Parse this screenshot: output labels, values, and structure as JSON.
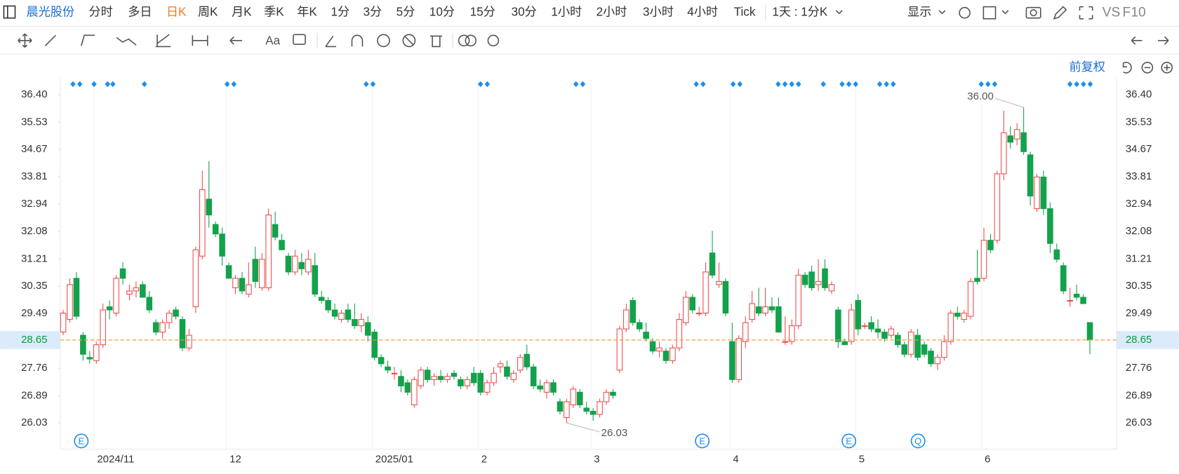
{
  "symbol": "晨光股份",
  "periods": [
    "分时",
    "多日",
    "日K",
    "周K",
    "月K",
    "季K",
    "年K",
    "1分",
    "3分",
    "5分",
    "10分",
    "15分",
    "30分",
    "1小时",
    "2小时",
    "3小时",
    "4小时",
    "Tick"
  ],
  "range_picker": "1天 : 1分K",
  "display": "显示",
  "compare": "VS",
  "f10": "F10",
  "font_tool": "Aa",
  "adjust": "前复权",
  "chart_data": {
    "type": "candlestick",
    "up_color": "#ef4b4d",
    "down_color": "#12a24b",
    "last_price_color": "#f39a3a",
    "xgrid": true,
    "ylim": [
      25.2,
      36.9
    ],
    "yticks": [
      {
        "value": 36.4,
        "label": "36.40"
      },
      35.53,
      34.67,
      33.81,
      32.94,
      32.08,
      31.21,
      30.35,
      29.49,
      27.76,
      26.89,
      26.03
    ],
    "last_price": 28.65,
    "annotations": [
      {
        "value": 36.0,
        "label": "36.00"
      },
      26.03
    ],
    "events": [
      "E",
      "E",
      "E",
      "Q"
    ],
    "categories": [
      null,
      null,
      null,
      null,
      null,
      "2024/11",
      null,
      null,
      null,
      null,
      null,
      null,
      null,
      null,
      null,
      null,
      null,
      null,
      null,
      null,
      null,
      null,
      null,
      null,
      null,
      "12",
      null,
      null,
      null,
      null,
      null,
      null,
      null,
      null,
      null,
      null,
      null,
      null,
      null,
      null,
      null,
      null,
      null,
      null,
      null,
      null,
      null,
      "2025/01",
      null,
      null,
      null,
      null,
      null,
      null,
      null,
      null,
      null,
      null,
      null,
      null,
      null,
      null,
      null,
      "2",
      null,
      null,
      null,
      null,
      null,
      null,
      null,
      null,
      null,
      null,
      null,
      null,
      null,
      null,
      null,
      null,
      "3",
      null,
      null,
      null,
      null,
      null,
      null,
      null,
      null,
      null,
      null,
      null,
      null,
      null,
      null,
      null,
      null,
      null,
      null,
      null,
      null,
      "4",
      null,
      null,
      null,
      null,
      null,
      null,
      null,
      null,
      null,
      null,
      null,
      null,
      null,
      null,
      null,
      null,
      null,
      null,
      "5",
      null,
      null,
      null,
      null,
      null,
      null,
      null,
      null,
      null,
      null,
      null,
      null,
      null,
      null,
      null,
      null,
      null,
      null,
      "6",
      null,
      null,
      null,
      null,
      null,
      null,
      null,
      null,
      null,
      null,
      null,
      null,
      null,
      null,
      null,
      null
    ],
    "ohlc": [
      [
        28.9,
        29.6,
        28.8,
        29.5
      ],
      [
        29.3,
        30.6,
        29.2,
        30.4
      ],
      [
        30.6,
        30.8,
        29.3,
        29.4
      ],
      [
        28.8,
        28.9,
        28.0,
        28.2
      ],
      [
        28.1,
        28.3,
        27.9,
        28.05
      ],
      [
        28.0,
        28.6,
        27.9,
        28.5
      ],
      [
        28.5,
        29.8,
        28.4,
        29.6
      ],
      [
        29.7,
        29.9,
        29.3,
        29.6
      ],
      [
        29.5,
        30.7,
        29.4,
        30.6
      ],
      [
        30.9,
        31.1,
        30.4,
        30.6
      ],
      [
        30.1,
        30.4,
        29.9,
        30.2
      ],
      [
        30.2,
        30.5,
        30.0,
        30.3
      ],
      [
        30.4,
        30.5,
        30.0,
        30.0
      ],
      [
        30.0,
        30.2,
        29.5,
        29.6
      ],
      [
        29.2,
        29.3,
        28.8,
        28.9
      ],
      [
        28.9,
        29.3,
        28.7,
        29.2
      ],
      [
        29.2,
        29.6,
        29.0,
        29.5
      ],
      [
        29.6,
        29.7,
        29.3,
        29.4
      ],
      [
        29.3,
        29.4,
        28.3,
        28.4
      ],
      [
        28.4,
        29.0,
        28.3,
        28.8
      ],
      [
        29.7,
        31.6,
        29.5,
        31.5
      ],
      [
        31.3,
        34.0,
        31.2,
        33.4
      ],
      [
        33.1,
        34.3,
        32.2,
        32.6
      ],
      [
        32.3,
        32.4,
        31.9,
        32.0
      ],
      [
        32.0,
        32.2,
        31.0,
        31.3
      ],
      [
        31.0,
        31.1,
        30.6,
        30.6
      ],
      [
        30.3,
        30.7,
        30.1,
        30.6
      ],
      [
        30.6,
        30.8,
        30.1,
        30.2
      ],
      [
        30.1,
        31.1,
        30.0,
        30.4
      ],
      [
        31.2,
        31.6,
        30.3,
        30.5
      ],
      [
        30.3,
        31.4,
        30.2,
        31.2
      ],
      [
        30.3,
        32.8,
        30.2,
        32.6
      ],
      [
        32.3,
        32.7,
        31.8,
        31.9
      ],
      [
        31.8,
        32.0,
        31.5,
        31.5
      ],
      [
        31.3,
        31.4,
        30.7,
        30.8
      ],
      [
        30.8,
        31.5,
        30.7,
        31.3
      ],
      [
        31.1,
        31.4,
        30.7,
        30.9
      ],
      [
        30.8,
        31.5,
        30.7,
        31.2
      ],
      [
        31.0,
        31.4,
        30.0,
        30.1
      ],
      [
        30.0,
        30.2,
        29.8,
        29.9
      ],
      [
        29.9,
        30.0,
        29.5,
        29.6
      ],
      [
        29.6,
        29.8,
        29.3,
        29.4
      ],
      [
        29.3,
        29.6,
        29.2,
        29.5
      ],
      [
        29.6,
        29.8,
        29.2,
        29.3
      ],
      [
        29.3,
        29.8,
        29.0,
        29.1
      ],
      [
        29.1,
        29.5,
        28.9,
        29.3
      ],
      [
        29.2,
        29.4,
        28.6,
        28.8
      ],
      [
        28.9,
        29.0,
        28.0,
        28.1
      ],
      [
        28.1,
        28.2,
        27.8,
        27.9
      ],
      [
        27.8,
        28.0,
        27.6,
        27.7
      ],
      [
        27.6,
        27.8,
        27.4,
        27.6
      ],
      [
        27.5,
        27.7,
        27.0,
        27.2
      ],
      [
        27.3,
        27.4,
        26.9,
        27.0
      ],
      [
        26.6,
        27.5,
        26.5,
        27.4
      ],
      [
        27.2,
        27.8,
        27.1,
        27.7
      ],
      [
        27.7,
        27.8,
        27.3,
        27.4
      ],
      [
        27.4,
        27.6,
        27.2,
        27.5
      ],
      [
        27.5,
        27.7,
        27.3,
        27.4
      ],
      [
        27.4,
        27.6,
        27.3,
        27.5
      ],
      [
        27.6,
        27.7,
        27.4,
        27.5
      ],
      [
        27.4,
        27.5,
        27.1,
        27.2
      ],
      [
        27.2,
        27.5,
        27.1,
        27.4
      ],
      [
        27.6,
        27.8,
        27.2,
        27.3
      ],
      [
        27.6,
        27.7,
        26.9,
        27.0
      ],
      [
        27.0,
        27.4,
        26.9,
        27.3
      ],
      [
        27.3,
        27.8,
        27.2,
        27.6
      ],
      [
        27.8,
        28.0,
        27.6,
        27.9
      ],
      [
        27.8,
        28.0,
        27.4,
        27.5
      ],
      [
        27.4,
        27.7,
        27.3,
        27.6
      ],
      [
        27.7,
        28.2,
        27.6,
        28.1
      ],
      [
        28.2,
        28.5,
        27.7,
        27.8
      ],
      [
        27.8,
        27.9,
        27.1,
        27.2
      ],
      [
        27.2,
        27.4,
        27.0,
        27.1
      ],
      [
        27.0,
        27.4,
        26.8,
        27.3
      ],
      [
        27.3,
        27.4,
        26.9,
        27.0
      ],
      [
        26.7,
        26.8,
        26.3,
        26.4
      ],
      [
        26.2,
        26.8,
        26.03,
        26.7
      ],
      [
        26.6,
        27.2,
        26.5,
        27.1
      ],
      [
        27.0,
        27.1,
        26.5,
        26.6
      ],
      [
        26.5,
        26.7,
        26.3,
        26.4
      ],
      [
        26.4,
        26.5,
        26.1,
        26.3
      ],
      [
        26.3,
        26.8,
        26.2,
        26.7
      ],
      [
        26.7,
        27.1,
        26.6,
        27.0
      ],
      [
        27.0,
        27.1,
        26.8,
        26.9
      ],
      [
        27.7,
        29.1,
        27.6,
        29.0
      ],
      [
        29.0,
        29.8,
        28.9,
        29.6
      ],
      [
        29.9,
        30.0,
        29.1,
        29.2
      ],
      [
        29.2,
        29.3,
        28.9,
        29.0
      ],
      [
        28.9,
        29.2,
        28.6,
        28.7
      ],
      [
        28.6,
        28.7,
        28.2,
        28.3
      ],
      [
        28.3,
        28.6,
        28.1,
        28.4
      ],
      [
        28.3,
        28.4,
        27.9,
        28.0
      ],
      [
        28.0,
        28.5,
        27.9,
        28.4
      ],
      [
        28.4,
        29.5,
        28.3,
        29.3
      ],
      [
        29.2,
        30.2,
        29.1,
        30.0
      ],
      [
        30.0,
        30.1,
        29.5,
        29.6
      ],
      [
        29.5,
        29.7,
        29.4,
        29.5
      ],
      [
        29.5,
        31.1,
        29.4,
        30.8
      ],
      [
        31.4,
        32.1,
        30.6,
        30.7
      ],
      [
        30.4,
        31.1,
        30.3,
        30.5
      ],
      [
        30.5,
        30.6,
        29.4,
        29.5
      ],
      [
        28.6,
        29.2,
        27.3,
        27.4
      ],
      [
        27.4,
        28.8,
        27.3,
        28.7
      ],
      [
        28.6,
        29.4,
        28.4,
        29.2
      ],
      [
        29.3,
        30.2,
        29.2,
        29.8
      ],
      [
        29.7,
        30.3,
        29.4,
        29.5
      ],
      [
        29.5,
        30.3,
        29.4,
        29.7
      ],
      [
        29.7,
        30.0,
        29.5,
        29.6
      ],
      [
        29.7,
        30.0,
        28.9,
        28.9
      ],
      [
        28.6,
        29.4,
        28.5,
        28.6
      ],
      [
        28.6,
        29.3,
        28.5,
        29.1
      ],
      [
        29.1,
        30.9,
        29.0,
        30.7
      ],
      [
        30.7,
        30.8,
        30.3,
        30.4
      ],
      [
        30.8,
        31.0,
        30.2,
        30.3
      ],
      [
        30.4,
        31.2,
        30.2,
        30.5
      ],
      [
        30.9,
        31.2,
        30.2,
        30.3
      ],
      [
        30.2,
        30.5,
        30.1,
        30.4
      ],
      [
        29.6,
        29.7,
        28.4,
        28.6
      ],
      [
        28.6,
        28.7,
        28.5,
        28.5
      ],
      [
        28.6,
        29.8,
        28.5,
        29.6
      ],
      [
        29.9,
        30.1,
        28.8,
        29.0
      ],
      [
        29.1,
        29.2,
        29.0,
        29.1
      ],
      [
        29.2,
        29.4,
        28.9,
        29.0
      ],
      [
        29.0,
        29.3,
        28.7,
        28.9
      ],
      [
        28.9,
        29.0,
        28.6,
        28.7
      ],
      [
        28.8,
        29.1,
        28.7,
        29.0
      ],
      [
        28.8,
        28.9,
        28.4,
        28.5
      ],
      [
        28.5,
        28.6,
        28.1,
        28.2
      ],
      [
        28.2,
        29.0,
        28.1,
        28.9
      ],
      [
        28.8,
        29.0,
        28.0,
        28.1
      ],
      [
        28.5,
        28.6,
        28.1,
        28.2
      ],
      [
        28.3,
        28.4,
        27.8,
        27.9
      ],
      [
        27.9,
        28.2,
        27.7,
        28.1
      ],
      [
        28.1,
        28.8,
        28.0,
        28.6
      ],
      [
        28.6,
        29.6,
        28.5,
        29.5
      ],
      [
        29.5,
        29.7,
        29.3,
        29.4
      ],
      [
        29.3,
        29.6,
        29.2,
        29.5
      ],
      [
        29.4,
        30.6,
        29.3,
        30.5
      ],
      [
        30.6,
        31.5,
        30.4,
        30.5
      ],
      [
        30.6,
        32.2,
        30.5,
        31.8
      ],
      [
        31.8,
        32.0,
        31.4,
        31.5
      ],
      [
        31.8,
        34.0,
        31.7,
        33.9
      ],
      [
        33.9,
        35.9,
        33.7,
        35.2
      ],
      [
        35.1,
        35.4,
        34.7,
        34.9
      ],
      [
        35.0,
        35.5,
        34.8,
        35.3
      ],
      [
        35.2,
        36.0,
        34.5,
        34.6
      ],
      [
        34.5,
        34.6,
        32.9,
        33.2
      ],
      [
        32.8,
        33.9,
        32.7,
        33.8
      ],
      [
        33.8,
        34.0,
        32.6,
        32.8
      ],
      [
        32.8,
        33.0,
        31.4,
        31.7
      ],
      [
        31.5,
        31.7,
        31.1,
        31.2
      ],
      [
        31.0,
        31.1,
        30.1,
        30.2
      ],
      [
        29.9,
        30.3,
        29.7,
        29.9
      ],
      [
        30.1,
        30.4,
        29.9,
        30.0
      ],
      [
        30.0,
        30.1,
        29.8,
        29.8
      ],
      [
        29.2,
        29.2,
        28.2,
        28.65
      ]
    ]
  }
}
